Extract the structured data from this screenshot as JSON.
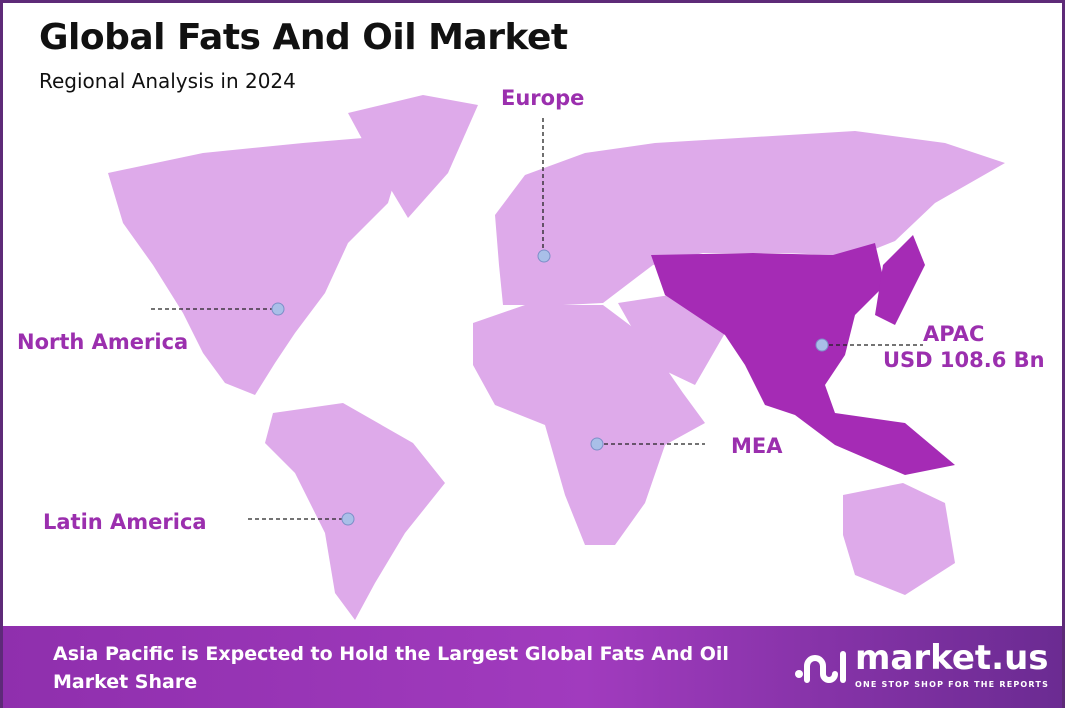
{
  "header": {
    "title": "Global Fats And Oil Market",
    "subtitle": "Regional Analysis in 2024"
  },
  "regions": [
    {
      "name": "Europe",
      "value": ""
    },
    {
      "name": "North America",
      "value": ""
    },
    {
      "name": "APAC",
      "value": "USD 108.6 Bn",
      "highlighted": true
    },
    {
      "name": "MEA",
      "value": ""
    },
    {
      "name": "Latin America",
      "value": ""
    }
  ],
  "colors": {
    "map_base": "#deaaea",
    "highlight": "#a52bb5",
    "label": "#9b2fae",
    "marker": "#a9bfe8",
    "border": "#5e2a78"
  },
  "footer": {
    "text": "Asia Pacific is Expected to Hold the Largest Global Fats And Oil Market Share"
  },
  "logo": {
    "name": "market.us",
    "tagline": "ONE STOP SHOP FOR THE REPORTS"
  }
}
